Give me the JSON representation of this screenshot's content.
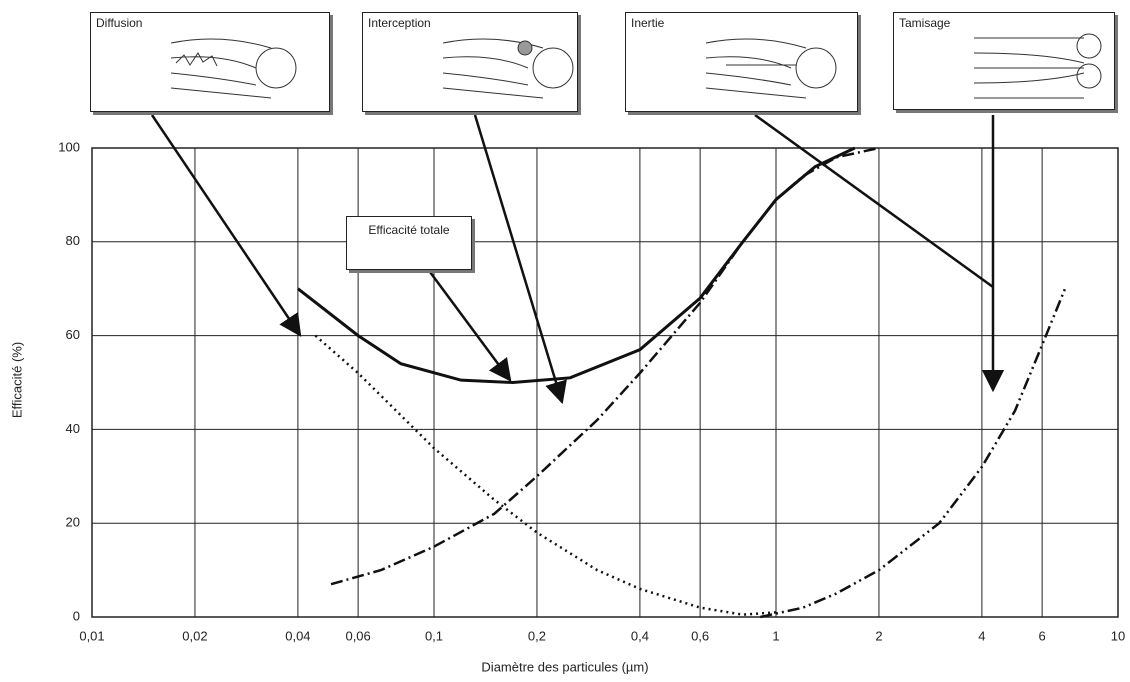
{
  "chart_data": {
    "type": "line",
    "x_label": "Diamètre des particules (µm)",
    "y_label": "Efficacité (%)",
    "xlog": true,
    "grid": true,
    "xlim": [
      0.01,
      10
    ],
    "ylim": [
      0,
      100
    ],
    "xticks": [
      {
        "value": 0.01,
        "label": "0,01"
      },
      {
        "value": 0.02,
        "label": "0,02"
      },
      {
        "value": 0.04,
        "label": "0,04"
      },
      {
        "value": 0.06,
        "label": "0,06"
      },
      {
        "value": 0.1,
        "label": "0,1"
      },
      {
        "value": 0.2,
        "label": "0,2"
      },
      {
        "value": 0.4,
        "label": "0,4"
      },
      {
        "value": 0.6,
        "label": "0,6"
      },
      1,
      2,
      4,
      6,
      10
    ],
    "yticks": [
      0,
      20,
      40,
      60,
      80,
      100
    ],
    "series": [
      {
        "name": "Efficacité totale",
        "color": "#111111",
        "style": "solid",
        "x": [
          0.04,
          0.06,
          0.08,
          0.12,
          0.17,
          0.25,
          0.4,
          0.6,
          0.8,
          1,
          1.3,
          1.7
        ],
        "values": [
          70,
          60,
          54,
          50.5,
          50,
          51,
          57,
          68,
          80,
          89,
          96,
          100
        ]
      },
      {
        "name": "Diffusion",
        "color": "#111111",
        "style": "dotted",
        "x": [
          0.045,
          0.06,
          0.1,
          0.15,
          0.2,
          0.3,
          0.4,
          0.6,
          0.8,
          1
        ],
        "values": [
          60,
          52,
          36,
          25,
          18,
          10,
          6,
          2,
          0.5,
          1
        ]
      },
      {
        "name": "Interception",
        "color": "#111111",
        "style": "dashdot",
        "x": [
          0.05,
          0.07,
          0.1,
          0.15,
          0.2,
          0.3,
          0.4,
          0.6,
          0.8,
          1,
          1.2,
          1.5,
          2
        ],
        "values": [
          7,
          10,
          15,
          22,
          30,
          42,
          52,
          67,
          80,
          89,
          94,
          98,
          100
        ]
      },
      {
        "name": "Inertie",
        "color": "#111111",
        "style": "dashdotdot",
        "x": [
          0.9,
          1.2,
          1.5,
          2,
          3,
          4,
          5,
          6,
          7
        ],
        "values": [
          0,
          2,
          5,
          10,
          20,
          32,
          44,
          58,
          70
        ]
      }
    ],
    "annotations": [
      "Tamisage"
    ]
  }
}
